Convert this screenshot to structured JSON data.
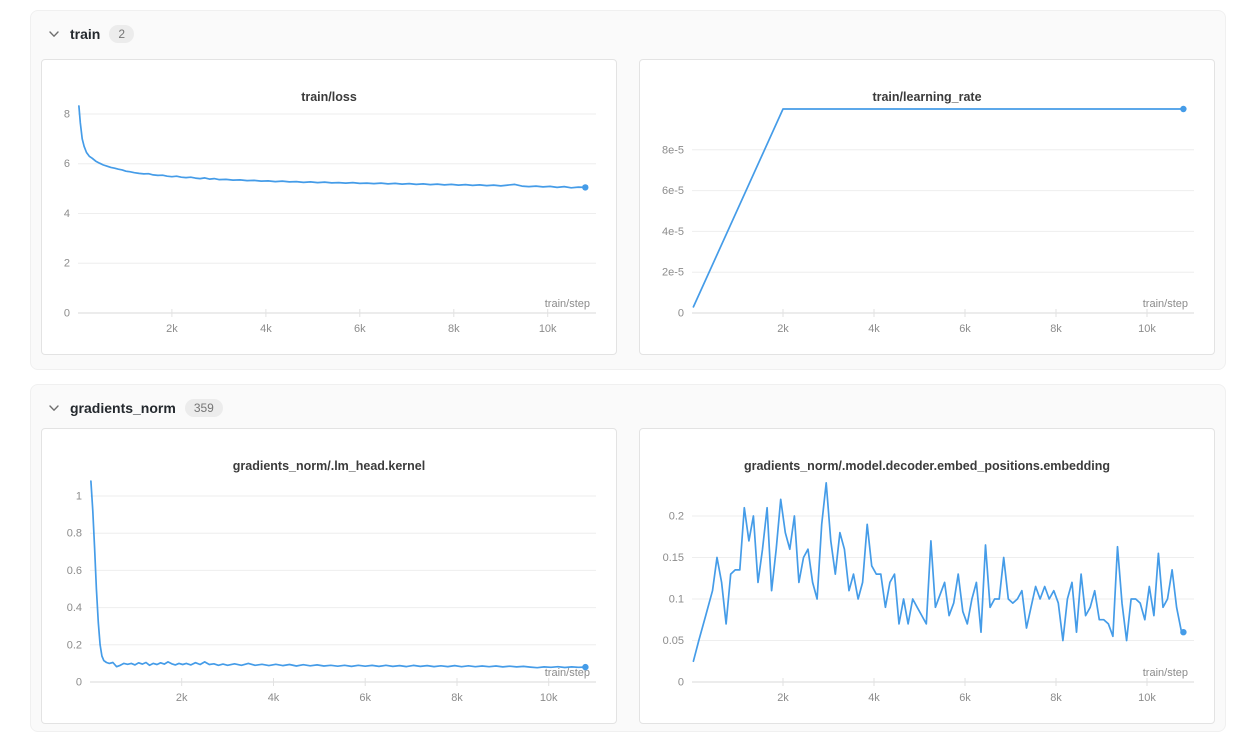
{
  "theme": {
    "line_color": "#459ce8",
    "section_bg": "#fafafa",
    "card_border": "#e3e3e3",
    "grid_color": "#eeeeee",
    "axis_color": "#d9d9d9",
    "tick_text_color": "#8c8c8c"
  },
  "sections": [
    {
      "title": "train",
      "count": "2"
    },
    {
      "title": "gradients_norm",
      "count": "359"
    }
  ],
  "chart_data": [
    {
      "type": "line",
      "title": "train/loss",
      "xlabel": "train/step",
      "ylabel": "",
      "legend": "none",
      "grid": "horizontal",
      "xlim": [
        0,
        10900
      ],
      "ylim": [
        0,
        8.4
      ],
      "plot_left": 36,
      "yticks": [
        [
          0,
          "0"
        ],
        [
          2,
          "2"
        ],
        [
          4,
          "4"
        ],
        [
          6,
          "6"
        ],
        [
          8,
          "8"
        ]
      ],
      "xticks": [
        [
          2000,
          "2k"
        ],
        [
          4000,
          "4k"
        ],
        [
          6000,
          "6k"
        ],
        [
          8000,
          "8k"
        ],
        [
          10000,
          "10k"
        ]
      ],
      "points": [
        [
          20,
          8.32
        ],
        [
          50,
          7.65
        ],
        [
          90,
          7.0
        ],
        [
          130,
          6.7
        ],
        [
          180,
          6.45
        ],
        [
          240,
          6.3
        ],
        [
          300,
          6.22
        ],
        [
          380,
          6.1
        ],
        [
          460,
          6.02
        ],
        [
          540,
          5.95
        ],
        [
          620,
          5.9
        ],
        [
          700,
          5.85
        ],
        [
          780,
          5.82
        ],
        [
          860,
          5.78
        ],
        [
          940,
          5.75
        ],
        [
          1020,
          5.7
        ],
        [
          1100,
          5.68
        ],
        [
          1200,
          5.64
        ],
        [
          1300,
          5.61
        ],
        [
          1400,
          5.59
        ],
        [
          1500,
          5.6
        ],
        [
          1600,
          5.55
        ],
        [
          1700,
          5.53
        ],
        [
          1800,
          5.54
        ],
        [
          1900,
          5.5
        ],
        [
          2000,
          5.48
        ],
        [
          2100,
          5.5
        ],
        [
          2200,
          5.46
        ],
        [
          2300,
          5.44
        ],
        [
          2400,
          5.46
        ],
        [
          2500,
          5.42
        ],
        [
          2600,
          5.4
        ],
        [
          2700,
          5.43
        ],
        [
          2800,
          5.38
        ],
        [
          2900,
          5.4
        ],
        [
          3000,
          5.36
        ],
        [
          3150,
          5.37
        ],
        [
          3300,
          5.34
        ],
        [
          3450,
          5.35
        ],
        [
          3600,
          5.32
        ],
        [
          3750,
          5.33
        ],
        [
          3900,
          5.3
        ],
        [
          4050,
          5.31
        ],
        [
          4200,
          5.28
        ],
        [
          4350,
          5.3
        ],
        [
          4500,
          5.27
        ],
        [
          4650,
          5.28
        ],
        [
          4800,
          5.25
        ],
        [
          4950,
          5.27
        ],
        [
          5100,
          5.24
        ],
        [
          5250,
          5.26
        ],
        [
          5400,
          5.23
        ],
        [
          5550,
          5.24
        ],
        [
          5700,
          5.22
        ],
        [
          5850,
          5.24
        ],
        [
          6000,
          5.21
        ],
        [
          6150,
          5.22
        ],
        [
          6300,
          5.2
        ],
        [
          6450,
          5.22
        ],
        [
          6600,
          5.19
        ],
        [
          6750,
          5.21
        ],
        [
          6900,
          5.18
        ],
        [
          7050,
          5.2
        ],
        [
          7200,
          5.17
        ],
        [
          7350,
          5.19
        ],
        [
          7500,
          5.16
        ],
        [
          7650,
          5.18
        ],
        [
          7800,
          5.15
        ],
        [
          7950,
          5.17
        ],
        [
          8100,
          5.14
        ],
        [
          8250,
          5.16
        ],
        [
          8400,
          5.13
        ],
        [
          8550,
          5.15
        ],
        [
          8700,
          5.12
        ],
        [
          8850,
          5.14
        ],
        [
          9000,
          5.11
        ],
        [
          9150,
          5.14
        ],
        [
          9300,
          5.17
        ],
        [
          9450,
          5.1
        ],
        [
          9600,
          5.08
        ],
        [
          9750,
          5.1
        ],
        [
          9900,
          5.07
        ],
        [
          10050,
          5.09
        ],
        [
          10200,
          5.05
        ],
        [
          10350,
          5.08
        ],
        [
          10500,
          5.03
        ],
        [
          10650,
          5.06
        ],
        [
          10800,
          5.05
        ]
      ]
    },
    {
      "type": "line",
      "title": "train/learning_rate",
      "xlabel": "train/step",
      "ylabel": "",
      "legend": "none",
      "grid": "horizontal",
      "xlim": [
        0,
        10900
      ],
      "ylim": [
        0,
        0.00010245
      ],
      "plot_left": 52,
      "yticks": [
        [
          0,
          "0"
        ],
        [
          2e-05,
          "2e-5"
        ],
        [
          4e-05,
          "4e-5"
        ],
        [
          6e-05,
          "6e-5"
        ],
        [
          8e-05,
          "8e-5"
        ]
      ],
      "xticks": [
        [
          2000,
          "2k"
        ],
        [
          4000,
          "4k"
        ],
        [
          6000,
          "6k"
        ],
        [
          8000,
          "8k"
        ],
        [
          10000,
          "10k"
        ]
      ],
      "points": [
        [
          30,
          3e-06
        ],
        [
          2000,
          0.0001
        ],
        [
          10800,
          0.0001
        ]
      ]
    },
    {
      "type": "line",
      "title": "gradients_norm/.lm_head.kernel",
      "xlabel": "train/step",
      "ylabel": "",
      "legend": "none",
      "grid": "horizontal",
      "xlim": [
        0,
        10900
      ],
      "ylim": [
        0,
        1.1237
      ],
      "plot_left": 48,
      "yticks": [
        [
          0,
          "0"
        ],
        [
          0.2,
          "0.2"
        ],
        [
          0.4,
          "0.4"
        ],
        [
          0.6,
          "0.6"
        ],
        [
          0.8,
          "0.8"
        ],
        [
          1,
          "1"
        ]
      ],
      "xticks": [
        [
          2000,
          "2k"
        ],
        [
          4000,
          "4k"
        ],
        [
          6000,
          "6k"
        ],
        [
          8000,
          "8k"
        ],
        [
          10000,
          "10k"
        ]
      ],
      "points": [
        [
          20,
          1.08
        ],
        [
          60,
          0.92
        ],
        [
          100,
          0.72
        ],
        [
          140,
          0.5
        ],
        [
          180,
          0.32
        ],
        [
          220,
          0.2
        ],
        [
          260,
          0.14
        ],
        [
          300,
          0.115
        ],
        [
          360,
          0.105
        ],
        [
          420,
          0.1
        ],
        [
          500,
          0.105
        ],
        [
          580,
          0.082
        ],
        [
          660,
          0.09
        ],
        [
          740,
          0.1
        ],
        [
          820,
          0.095
        ],
        [
          900,
          0.1
        ],
        [
          980,
          0.092
        ],
        [
          1060,
          0.103
        ],
        [
          1140,
          0.096
        ],
        [
          1220,
          0.105
        ],
        [
          1300,
          0.09
        ],
        [
          1380,
          0.1
        ],
        [
          1460,
          0.094
        ],
        [
          1540,
          0.103
        ],
        [
          1620,
          0.096
        ],
        [
          1700,
          0.108
        ],
        [
          1780,
          0.098
        ],
        [
          1860,
          0.092
        ],
        [
          1940,
          0.1
        ],
        [
          2020,
          0.094
        ],
        [
          2100,
          0.1
        ],
        [
          2200,
          0.092
        ],
        [
          2300,
          0.104
        ],
        [
          2400,
          0.094
        ],
        [
          2500,
          0.108
        ],
        [
          2600,
          0.094
        ],
        [
          2700,
          0.098
        ],
        [
          2800,
          0.09
        ],
        [
          2900,
          0.096
        ],
        [
          3000,
          0.09
        ],
        [
          3150,
          0.098
        ],
        [
          3300,
          0.09
        ],
        [
          3450,
          0.1
        ],
        [
          3600,
          0.09
        ],
        [
          3750,
          0.095
        ],
        [
          3900,
          0.088
        ],
        [
          4050,
          0.095
        ],
        [
          4200,
          0.088
        ],
        [
          4350,
          0.094
        ],
        [
          4500,
          0.086
        ],
        [
          4650,
          0.093
        ],
        [
          4800,
          0.087
        ],
        [
          4950,
          0.092
        ],
        [
          5100,
          0.086
        ],
        [
          5250,
          0.09
        ],
        [
          5400,
          0.085
        ],
        [
          5550,
          0.09
        ],
        [
          5700,
          0.084
        ],
        [
          5850,
          0.09
        ],
        [
          6000,
          0.085
        ],
        [
          6150,
          0.089
        ],
        [
          6300,
          0.084
        ],
        [
          6450,
          0.09
        ],
        [
          6600,
          0.084
        ],
        [
          6750,
          0.088
        ],
        [
          6900,
          0.083
        ],
        [
          7050,
          0.089
        ],
        [
          7200,
          0.084
        ],
        [
          7350,
          0.088
        ],
        [
          7500,
          0.083
        ],
        [
          7650,
          0.087
        ],
        [
          7800,
          0.083
        ],
        [
          7950,
          0.088
        ],
        [
          8100,
          0.082
        ],
        [
          8250,
          0.087
        ],
        [
          8400,
          0.082
        ],
        [
          8550,
          0.086
        ],
        [
          8700,
          0.082
        ],
        [
          8850,
          0.086
        ],
        [
          9000,
          0.081
        ],
        [
          9150,
          0.085
        ],
        [
          9300,
          0.081
        ],
        [
          9450,
          0.084
        ],
        [
          9600,
          0.08
        ],
        [
          9750,
          0.077
        ],
        [
          9900,
          0.081
        ],
        [
          10050,
          0.079
        ],
        [
          10200,
          0.082
        ],
        [
          10350,
          0.078
        ],
        [
          10500,
          0.081
        ],
        [
          10650,
          0.079
        ],
        [
          10800,
          0.08
        ]
      ]
    },
    {
      "type": "line",
      "title": "gradients_norm/.model.decoder.embed_positions.embedding",
      "xlabel": "train/step",
      "ylabel": "",
      "legend": "none",
      "grid": "horizontal",
      "xlim": [
        0,
        10900
      ],
      "ylim": [
        0,
        0.2518
      ],
      "plot_left": 52,
      "yticks": [
        [
          0,
          "0"
        ],
        [
          0.05,
          "0.05"
        ],
        [
          0.1,
          "0.1"
        ],
        [
          0.15,
          "0.15"
        ],
        [
          0.2,
          "0.2"
        ]
      ],
      "xticks": [
        [
          2000,
          "2k"
        ],
        [
          4000,
          "4k"
        ],
        [
          6000,
          "6k"
        ],
        [
          8000,
          "8k"
        ],
        [
          10000,
          "10k"
        ]
      ],
      "points": [
        [
          30,
          0.025
        ],
        [
          150,
          0.05
        ],
        [
          300,
          0.08
        ],
        [
          450,
          0.11
        ],
        [
          550,
          0.15
        ],
        [
          650,
          0.12
        ],
        [
          750,
          0.07
        ],
        [
          850,
          0.13
        ],
        [
          950,
          0.135
        ],
        [
          1050,
          0.135
        ],
        [
          1150,
          0.21
        ],
        [
          1250,
          0.17
        ],
        [
          1350,
          0.2
        ],
        [
          1450,
          0.12
        ],
        [
          1550,
          0.16
        ],
        [
          1650,
          0.21
        ],
        [
          1750,
          0.11
        ],
        [
          1850,
          0.16
        ],
        [
          1950,
          0.22
        ],
        [
          2050,
          0.18
        ],
        [
          2150,
          0.16
        ],
        [
          2250,
          0.2
        ],
        [
          2350,
          0.12
        ],
        [
          2450,
          0.15
        ],
        [
          2550,
          0.16
        ],
        [
          2650,
          0.12
        ],
        [
          2750,
          0.1
        ],
        [
          2850,
          0.19
        ],
        [
          2950,
          0.24
        ],
        [
          3050,
          0.17
        ],
        [
          3150,
          0.13
        ],
        [
          3250,
          0.18
        ],
        [
          3350,
          0.16
        ],
        [
          3450,
          0.11
        ],
        [
          3550,
          0.13
        ],
        [
          3650,
          0.1
        ],
        [
          3750,
          0.12
        ],
        [
          3850,
          0.19
        ],
        [
          3950,
          0.14
        ],
        [
          4050,
          0.13
        ],
        [
          4150,
          0.13
        ],
        [
          4250,
          0.09
        ],
        [
          4350,
          0.12
        ],
        [
          4450,
          0.13
        ],
        [
          4550,
          0.07
        ],
        [
          4650,
          0.1
        ],
        [
          4750,
          0.07
        ],
        [
          4850,
          0.1
        ],
        [
          4950,
          0.09
        ],
        [
          5050,
          0.08
        ],
        [
          5150,
          0.07
        ],
        [
          5250,
          0.17
        ],
        [
          5350,
          0.09
        ],
        [
          5450,
          0.105
        ],
        [
          5550,
          0.12
        ],
        [
          5650,
          0.08
        ],
        [
          5750,
          0.095
        ],
        [
          5850,
          0.13
        ],
        [
          5950,
          0.085
        ],
        [
          6050,
          0.07
        ],
        [
          6150,
          0.1
        ],
        [
          6250,
          0.12
        ],
        [
          6350,
          0.06
        ],
        [
          6450,
          0.165
        ],
        [
          6550,
          0.09
        ],
        [
          6650,
          0.1
        ],
        [
          6750,
          0.1
        ],
        [
          6850,
          0.15
        ],
        [
          6950,
          0.1
        ],
        [
          7050,
          0.095
        ],
        [
          7150,
          0.1
        ],
        [
          7250,
          0.11
        ],
        [
          7350,
          0.065
        ],
        [
          7450,
          0.09
        ],
        [
          7550,
          0.115
        ],
        [
          7650,
          0.1
        ],
        [
          7750,
          0.115
        ],
        [
          7850,
          0.1
        ],
        [
          7950,
          0.11
        ],
        [
          8050,
          0.095
        ],
        [
          8150,
          0.05
        ],
        [
          8250,
          0.1
        ],
        [
          8350,
          0.12
        ],
        [
          8450,
          0.06
        ],
        [
          8550,
          0.13
        ],
        [
          8650,
          0.08
        ],
        [
          8750,
          0.09
        ],
        [
          8850,
          0.11
        ],
        [
          8950,
          0.075
        ],
        [
          9050,
          0.075
        ],
        [
          9150,
          0.07
        ],
        [
          9250,
          0.055
        ],
        [
          9350,
          0.163
        ],
        [
          9450,
          0.095
        ],
        [
          9550,
          0.05
        ],
        [
          9650,
          0.1
        ],
        [
          9750,
          0.1
        ],
        [
          9850,
          0.095
        ],
        [
          9950,
          0.075
        ],
        [
          10050,
          0.115
        ],
        [
          10150,
          0.08
        ],
        [
          10250,
          0.155
        ],
        [
          10350,
          0.09
        ],
        [
          10450,
          0.1
        ],
        [
          10550,
          0.135
        ],
        [
          10650,
          0.09
        ],
        [
          10750,
          0.062
        ],
        [
          10800,
          0.06
        ]
      ]
    }
  ]
}
